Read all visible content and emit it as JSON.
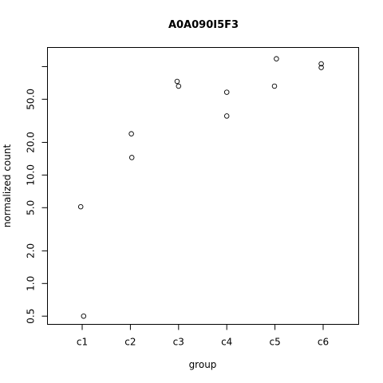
{
  "chart_data": {
    "type": "scatter",
    "title": "A0A090I5F3",
    "xlabel": "group",
    "ylabel": "normalized count",
    "categories": [
      "c1",
      "c2",
      "c3",
      "c4",
      "c5",
      "c6"
    ],
    "y_scale": "log",
    "ylim": [
      0.42,
      150
    ],
    "y_ticks": [
      {
        "value": 0.5,
        "label": "0.5"
      },
      {
        "value": 1,
        "label": "1.0"
      },
      {
        "value": 2,
        "label": "2.0"
      },
      {
        "value": 5,
        "label": "5.0"
      },
      {
        "value": 10,
        "label": "10.0"
      },
      {
        "value": 20,
        "label": "20.0"
      },
      {
        "value": 50,
        "label": "50.0"
      },
      {
        "value": 100,
        "label": ""
      }
    ],
    "points": [
      {
        "group": "c1",
        "jitter": -0.03,
        "y": 5.1
      },
      {
        "group": "c1",
        "jitter": 0.03,
        "y": 0.5
      },
      {
        "group": "c2",
        "jitter": 0.02,
        "y": 24
      },
      {
        "group": "c2",
        "jitter": 0.03,
        "y": 14.5
      },
      {
        "group": "c3",
        "jitter": -0.03,
        "y": 73
      },
      {
        "group": "c3",
        "jitter": 0.0,
        "y": 66
      },
      {
        "group": "c4",
        "jitter": 0.0,
        "y": 58
      },
      {
        "group": "c4",
        "jitter": 0.0,
        "y": 35
      },
      {
        "group": "c5",
        "jitter": 0.03,
        "y": 118
      },
      {
        "group": "c5",
        "jitter": -0.01,
        "y": 66
      },
      {
        "group": "c6",
        "jitter": -0.04,
        "y": 106
      },
      {
        "group": "c6",
        "jitter": -0.04,
        "y": 98
      }
    ],
    "grid": false,
    "legend": "none"
  }
}
